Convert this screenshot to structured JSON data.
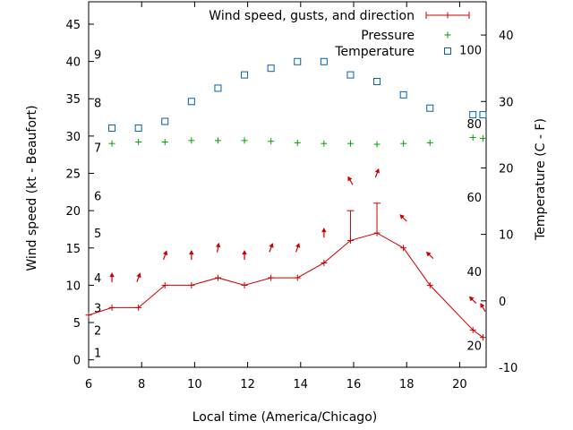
{
  "chart_data": {
    "type": "line",
    "xlabel": "Local time (America/Chicago)",
    "ylabel": "Wind speed (kt - Beaufort)",
    "y2label": "Temperature (C - F)",
    "xlim": [
      6,
      21
    ],
    "ylim": [
      -1,
      48
    ],
    "y2lim": [
      -10,
      45
    ],
    "x_ticks": [
      "6",
      "8",
      "10",
      "12",
      "14",
      "16",
      "18",
      "20"
    ],
    "y_ticks": [
      "0",
      "5",
      "10",
      "15",
      "20",
      "25",
      "30",
      "35",
      "40",
      "45"
    ],
    "y2_ticks": [
      "-10",
      "0",
      "10",
      "20",
      "30",
      "40"
    ],
    "beaufort": [
      {
        "label": "1",
        "y": 1
      },
      {
        "label": "2",
        "y": 4
      },
      {
        "label": "3",
        "y": 7
      },
      {
        "label": "4",
        "y": 11
      },
      {
        "label": "5",
        "y": 17
      },
      {
        "label": "6",
        "y": 22
      },
      {
        "label": "7",
        "y": 28.5
      },
      {
        "label": "8",
        "y": 34.5
      },
      {
        "label": "9",
        "y": 41
      }
    ],
    "fahrenheit": [
      {
        "label": "20",
        "y": -6.7
      },
      {
        "label": "40",
        "y": 4.4
      },
      {
        "label": "60",
        "y": 15.6
      },
      {
        "label": "80",
        "y": 26.7
      },
      {
        "label": "100",
        "y": 37.8
      }
    ],
    "legend": {
      "placement": "top-right",
      "entries": [
        "Wind speed, gusts, and direction",
        "Pressure",
        "Temperature"
      ]
    },
    "series": [
      {
        "name": "Wind speed, gusts, and direction",
        "color": "#cc0000",
        "x": [
          6,
          6.88,
          7.88,
          8.88,
          9.88,
          10.88,
          11.88,
          12.88,
          13.88,
          14.88,
          15.88,
          16.88,
          17.88,
          18.88,
          20.5,
          20.88
        ],
        "values": [
          6,
          7,
          7,
          10,
          10,
          11,
          10,
          11,
          11,
          13,
          16,
          17,
          15,
          10,
          4,
          3
        ],
        "gusts": [
          {
            "x": 15.88,
            "y": 20
          },
          {
            "x": 16.88,
            "y": 21
          }
        ],
        "directions": [
          {
            "x": 6.88,
            "y": 11,
            "dir": 180
          },
          {
            "x": 7.88,
            "y": 11,
            "dir": 200
          },
          {
            "x": 8.88,
            "y": 14,
            "dir": 200
          },
          {
            "x": 9.88,
            "y": 14,
            "dir": 180
          },
          {
            "x": 10.88,
            "y": 15,
            "dir": 190
          },
          {
            "x": 11.88,
            "y": 14,
            "dir": 180
          },
          {
            "x": 12.88,
            "y": 15,
            "dir": 200
          },
          {
            "x": 13.88,
            "y": 15,
            "dir": 200
          },
          {
            "x": 14.88,
            "y": 17,
            "dir": 180
          },
          {
            "x": 15.88,
            "y": 24,
            "dir": 150
          },
          {
            "x": 16.88,
            "y": 25,
            "dir": 200
          },
          {
            "x": 17.88,
            "y": 19,
            "dir": 135
          },
          {
            "x": 18.88,
            "y": 14,
            "dir": 135
          },
          {
            "x": 20.5,
            "y": 8,
            "dir": 135
          },
          {
            "x": 20.88,
            "y": 7,
            "dir": 150
          }
        ]
      },
      {
        "name": "Pressure",
        "color": "#00a000",
        "x": [
          6.88,
          7.88,
          8.88,
          9.88,
          10.88,
          11.88,
          12.88,
          13.88,
          14.88,
          15.88,
          16.88,
          17.88,
          18.88,
          20.5,
          20.88
        ],
        "values": [
          29,
          29.2,
          29.2,
          29.4,
          29.4,
          29.4,
          29.3,
          29.1,
          29,
          29,
          28.9,
          29,
          29.1,
          29.8,
          29.7
        ]
      },
      {
        "name": "Temperature",
        "color": "#0060ad",
        "x": [
          6.88,
          7.88,
          8.88,
          9.88,
          10.88,
          11.88,
          12.88,
          13.88,
          14.88,
          15.88,
          16.88,
          17.88,
          18.88,
          20.5,
          20.88
        ],
        "values": [
          26,
          26,
          27,
          30,
          32,
          34,
          35,
          36,
          36,
          34,
          33,
          31,
          29,
          28,
          28
        ]
      }
    ]
  }
}
